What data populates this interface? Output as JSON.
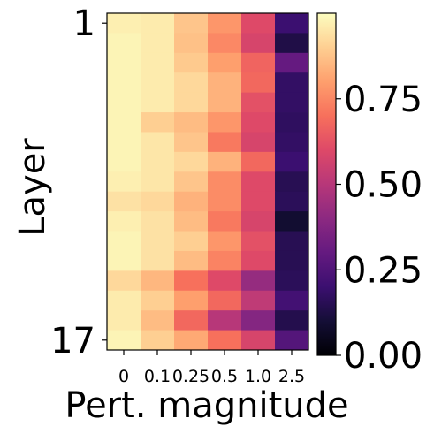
{
  "chart_data": {
    "type": "heatmap",
    "title": "",
    "xlabel": "Pert. magnitude",
    "ylabel": "Layer",
    "x_categories": [
      "0",
      "0.1",
      "0.25",
      "0.5",
      "1.0",
      "2.5"
    ],
    "y_tick_labels": [
      {
        "row": 0,
        "label": "1"
      },
      {
        "row": 16,
        "label": "17"
      }
    ],
    "colormap": "magma",
    "colorbar": {
      "range": [
        0.0,
        1.0
      ],
      "ticks": [
        0.0,
        0.25,
        0.5,
        0.75
      ],
      "tick_labels": [
        "0.00",
        "0.25",
        "0.50",
        "0.75"
      ]
    },
    "rows": 17,
    "values": [
      [
        0.97,
        0.96,
        0.88,
        0.78,
        0.6,
        0.2
      ],
      [
        0.98,
        0.96,
        0.87,
        0.75,
        0.58,
        0.13
      ],
      [
        0.98,
        0.96,
        0.89,
        0.8,
        0.67,
        0.3
      ],
      [
        0.98,
        0.96,
        0.92,
        0.84,
        0.68,
        0.18
      ],
      [
        0.98,
        0.96,
        0.92,
        0.84,
        0.62,
        0.18
      ],
      [
        0.98,
        0.9,
        0.86,
        0.78,
        0.6,
        0.17
      ],
      [
        0.98,
        0.95,
        0.88,
        0.72,
        0.58,
        0.18
      ],
      [
        0.98,
        0.95,
        0.92,
        0.84,
        0.68,
        0.2
      ],
      [
        0.97,
        0.95,
        0.88,
        0.76,
        0.6,
        0.15
      ],
      [
        0.94,
        0.92,
        0.84,
        0.76,
        0.6,
        0.16
      ],
      [
        0.97,
        0.94,
        0.86,
        0.72,
        0.58,
        0.09
      ],
      [
        0.98,
        0.94,
        0.9,
        0.78,
        0.62,
        0.15
      ],
      [
        0.98,
        0.94,
        0.86,
        0.74,
        0.6,
        0.15
      ],
      [
        0.92,
        0.85,
        0.7,
        0.6,
        0.42,
        0.16
      ],
      [
        0.96,
        0.9,
        0.8,
        0.68,
        0.52,
        0.22
      ],
      [
        0.96,
        0.86,
        0.68,
        0.5,
        0.38,
        0.14
      ],
      [
        0.98,
        0.9,
        0.82,
        0.7,
        0.58,
        0.26
      ]
    ]
  }
}
